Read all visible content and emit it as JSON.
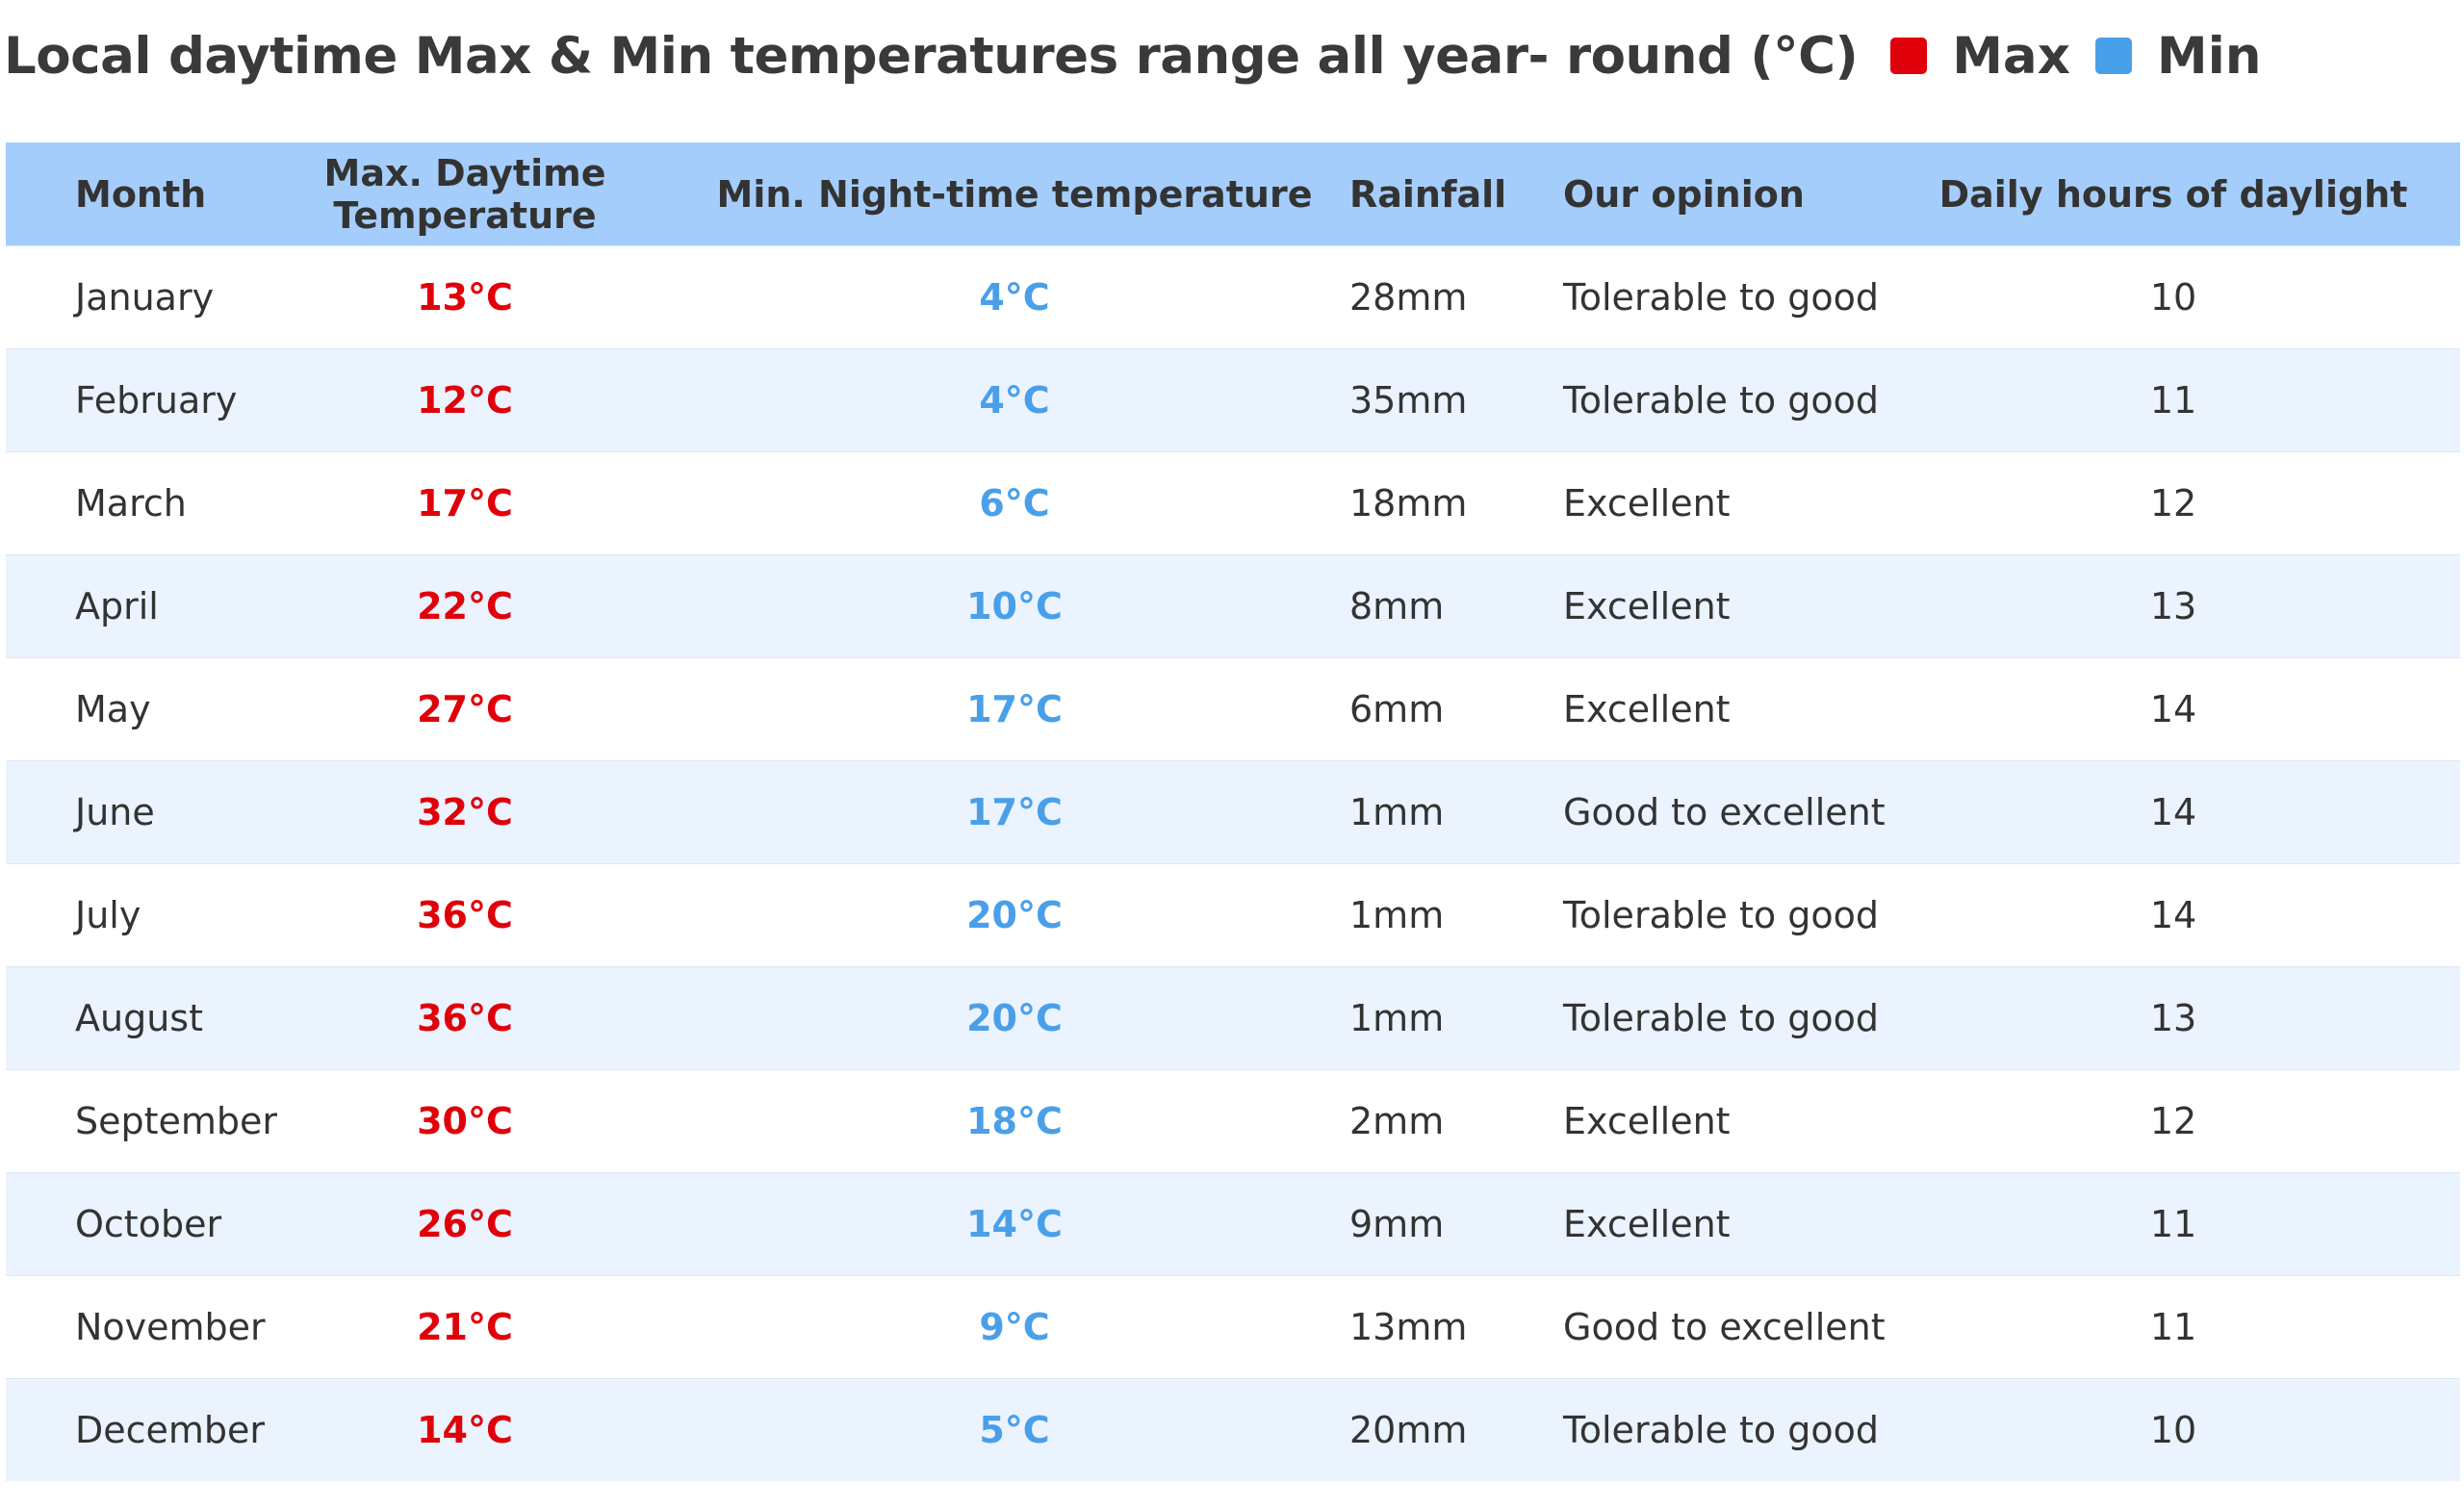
{
  "legend": [
    {
      "label": "Max",
      "color": "#e0000a"
    },
    {
      "label": "Min",
      "color": "#4a9fe9"
    }
  ],
  "chart_data": {
    "type": "table",
    "title": "Local daytime Max & Min temperatures range all year- round (°C)",
    "columns": [
      "Month",
      "Max. Daytime Temperature",
      "Min. Night-time temperature",
      "Rainfall",
      "Our opinion",
      "Daily hours of daylight"
    ],
    "header_background": "#a5cdfb",
    "row_stripe_color": "#eaf3fe",
    "rows": [
      [
        "January",
        "13°C",
        "4°C",
        "28mm",
        "Tolerable to good",
        "10"
      ],
      [
        "February",
        "12°C",
        "4°C",
        "35mm",
        "Tolerable to good",
        "11"
      ],
      [
        "March",
        "17°C",
        "6°C",
        "18mm",
        "Excellent",
        "12"
      ],
      [
        "April",
        "22°C",
        "10°C",
        "8mm",
        "Excellent",
        "13"
      ],
      [
        "May",
        "27°C",
        "17°C",
        "6mm",
        "Excellent",
        "14"
      ],
      [
        "June",
        "32°C",
        "17°C",
        "1mm",
        "Good to excellent",
        "14"
      ],
      [
        "July",
        "36°C",
        "20°C",
        "1mm",
        "Tolerable to good",
        "14"
      ],
      [
        "August",
        "36°C",
        "20°C",
        "1mm",
        "Tolerable to good",
        "13"
      ],
      [
        "September",
        "30°C",
        "18°C",
        "2mm",
        "Excellent",
        "12"
      ],
      [
        "October",
        "26°C",
        "14°C",
        "9mm",
        "Excellent",
        "11"
      ],
      [
        "November",
        "21°C",
        "9°C",
        "13mm",
        "Good to excellent",
        "11"
      ],
      [
        "December",
        "14°C",
        "5°C",
        "20mm",
        "Tolerable to good",
        "10"
      ]
    ]
  }
}
